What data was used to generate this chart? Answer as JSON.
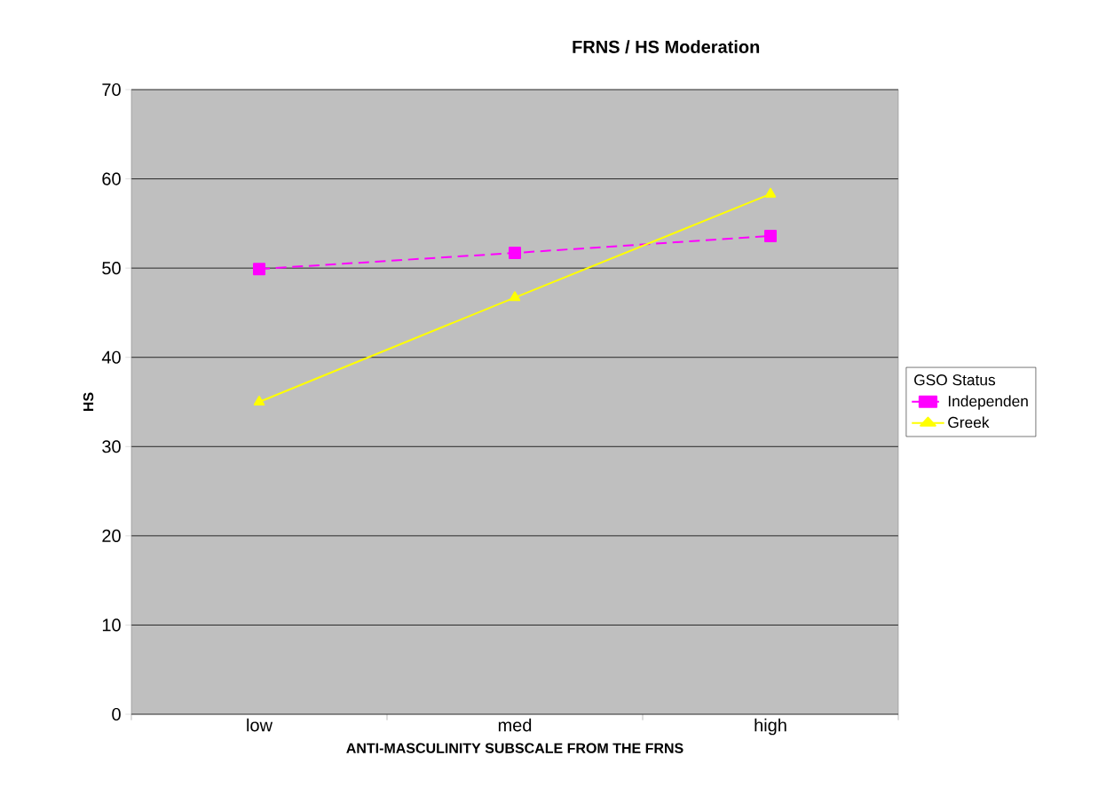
{
  "chart_data": {
    "type": "line",
    "title": "FRNS / HS Moderation",
    "xlabel": "ANTI-MASCULINITY SUBSCALE FROM THE FRNS",
    "ylabel": "HS",
    "categories": [
      "low",
      "med",
      "high"
    ],
    "series": [
      {
        "name": "Independen",
        "color": "#ff00ff",
        "values": [
          49.9,
          51.7,
          53.6
        ],
        "marker": "square",
        "line_style": "dashed"
      },
      {
        "name": "Greek",
        "color": "#ffff00",
        "values": [
          35.0,
          46.7,
          58.3
        ],
        "marker": "triangle",
        "line_style": "solid"
      }
    ],
    "legend_title": "GSO Status",
    "legend": "right",
    "grid": "y",
    "ylim": [
      0,
      70
    ],
    "yticks": [
      0,
      10,
      20,
      30,
      40,
      50,
      60,
      70
    ]
  }
}
